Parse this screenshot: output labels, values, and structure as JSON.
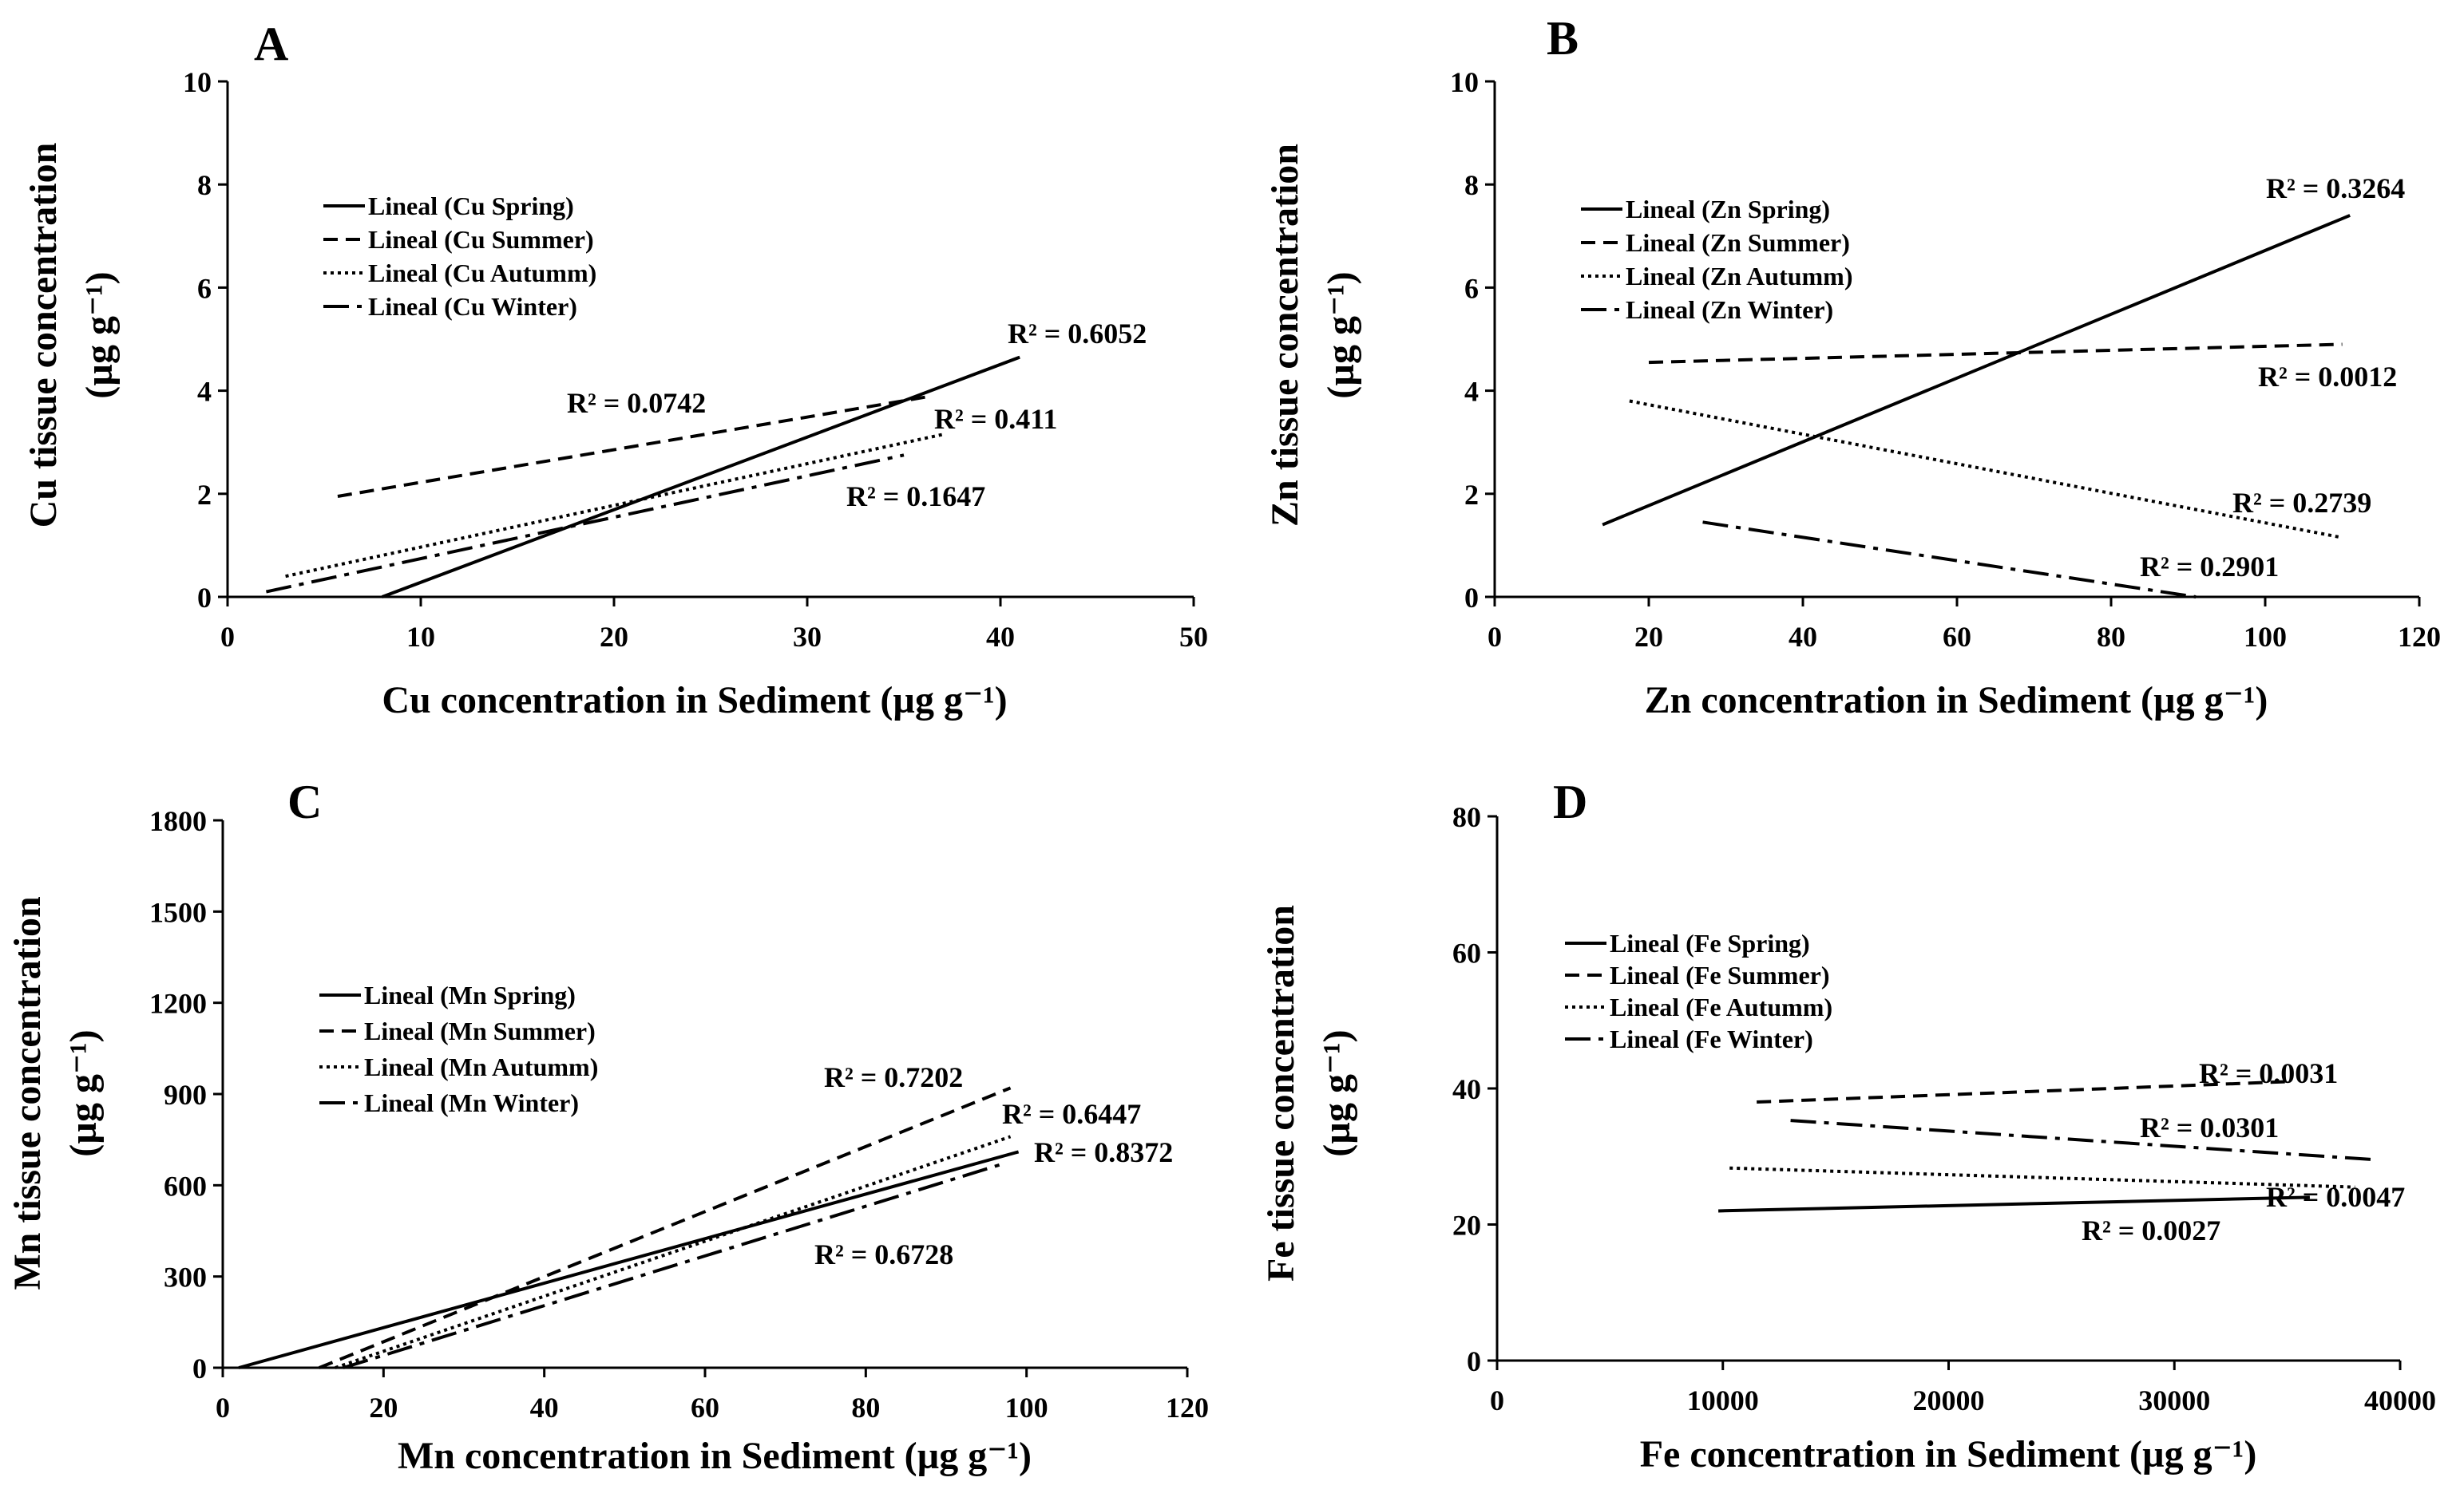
{
  "chart_data": [
    {
      "type": "line",
      "panel": "A",
      "title": "",
      "xlabel": "Cu concentration in Sediment (µg g⁻¹)",
      "ylabel_line1": "Cu tissue concentration",
      "ylabel_line2": "(µg g⁻¹)",
      "xlim": [
        0,
        50
      ],
      "ylim": [
        0,
        10
      ],
      "xticks": [
        0,
        10,
        20,
        30,
        40,
        50
      ],
      "yticks": [
        0,
        2,
        4,
        6,
        8,
        10
      ],
      "series": [
        {
          "name": "Lineal (Cu Spring)",
          "style": "solid",
          "x": [
            8,
            41
          ],
          "y": [
            0,
            4.65
          ],
          "r2": "R² = 0.6052"
        },
        {
          "name": "Lineal (Cu Summer)",
          "style": "dashed",
          "x": [
            5.7,
            36.5
          ],
          "y": [
            1.95,
            3.9
          ],
          "r2": "R² = 0.0742"
        },
        {
          "name": "Lineal (Cu Autumm)",
          "style": "dotted",
          "x": [
            3,
            37
          ],
          "y": [
            0.4,
            3.15
          ],
          "r2": "R² = 0.411"
        },
        {
          "name": "Lineal (Cu Winter)",
          "style": "dashdot",
          "x": [
            2,
            35
          ],
          "y": [
            0.1,
            2.75
          ],
          "r2": "R² = 0.1647"
        }
      ]
    },
    {
      "type": "line",
      "panel": "B",
      "title": "",
      "xlabel": "Zn concentration in Sediment (µg g⁻¹)",
      "ylabel_line1": "Zn tissue concentration",
      "ylabel_line2": "(µg g⁻¹)",
      "xlim": [
        0,
        120
      ],
      "ylim": [
        0,
        10
      ],
      "xticks": [
        0,
        20,
        40,
        60,
        80,
        100,
        120
      ],
      "yticks": [
        0,
        2,
        4,
        6,
        8,
        10
      ],
      "series": [
        {
          "name": "Lineal (Zn Spring)",
          "style": "solid",
          "x": [
            14,
            111
          ],
          "y": [
            1.4,
            7.4
          ],
          "r2": "R² = 0.3264"
        },
        {
          "name": "Lineal (Zn Summer)",
          "style": "dashed",
          "x": [
            20,
            110
          ],
          "y": [
            4.55,
            4.9
          ],
          "r2": "R² = 0.0012"
        },
        {
          "name": "Lineal (Zn Autumm)",
          "style": "dotted",
          "x": [
            17.5,
            110
          ],
          "y": [
            3.8,
            1.15
          ],
          "r2": "R² = 0.2739"
        },
        {
          "name": "Lineal (Zn Winter)",
          "style": "dashdot",
          "x": [
            27,
            91
          ],
          "y": [
            1.45,
            0
          ],
          "r2": "R² = 0.2901"
        }
      ]
    },
    {
      "type": "line",
      "panel": "C",
      "title": "",
      "xlabel": "Mn concentration in Sediment (µg g⁻¹)",
      "ylabel_line1": "Mn tissue concentration",
      "ylabel_line2": "(µg g⁻¹)",
      "xlim": [
        0,
        120
      ],
      "ylim": [
        0,
        1800
      ],
      "xticks": [
        0,
        20,
        40,
        60,
        80,
        100,
        120
      ],
      "yticks": [
        0,
        300,
        600,
        900,
        1200,
        1500,
        1800
      ],
      "series": [
        {
          "name": "Lineal (Mn Spring)",
          "style": "solid",
          "x": [
            2,
            99
          ],
          "y": [
            0,
            710
          ],
          "r2": "R² = 0.8372"
        },
        {
          "name": "Lineal (Mn Summer)",
          "style": "dashed",
          "x": [
            12,
            98
          ],
          "y": [
            0,
            920
          ],
          "r2": "R² = 0.7202"
        },
        {
          "name": "Lineal (Mn Autumm)",
          "style": "dotted",
          "x": [
            14,
            98
          ],
          "y": [
            0,
            760
          ],
          "r2": "R² = 0.6447"
        },
        {
          "name": "Lineal (Mn Winter)",
          "style": "dashdot",
          "x": [
            15,
            97
          ],
          "y": [
            0,
            670
          ],
          "r2": "R² = 0.6728"
        }
      ]
    },
    {
      "type": "line",
      "panel": "D",
      "title": "",
      "xlabel": "Fe concentration in Sediment (µg g⁻¹)",
      "ylabel_line1": "Fe tissue concentration",
      "ylabel_line2": "(µg g⁻¹)",
      "xlim": [
        0,
        40000
      ],
      "ylim": [
        0,
        80
      ],
      "xticks": [
        0,
        10000,
        20000,
        30000,
        40000
      ],
      "yticks": [
        0,
        20,
        40,
        60,
        80
      ],
      "series": [
        {
          "name": "Lineal (Fe Spring)",
          "style": "solid",
          "x": [
            9800,
            36000
          ],
          "y": [
            22,
            24
          ],
          "r2": "R² = 0.0027"
        },
        {
          "name": "Lineal (Fe Summer)",
          "style": "dashed",
          "x": [
            11500,
            35000
          ],
          "y": [
            38,
            41
          ],
          "r2": "R² = 0.0031"
        },
        {
          "name": "Lineal (Fe Autumm)",
          "style": "dotted",
          "x": [
            10300,
            38000
          ],
          "y": [
            28.3,
            25.5
          ],
          "r2": "R² = 0.0047"
        },
        {
          "name": "Lineal (Fe Winter)",
          "style": "dashdot",
          "x": [
            13000,
            39000
          ],
          "y": [
            35.3,
            29.5
          ],
          "r2": "R² = 0.0301"
        }
      ]
    }
  ]
}
